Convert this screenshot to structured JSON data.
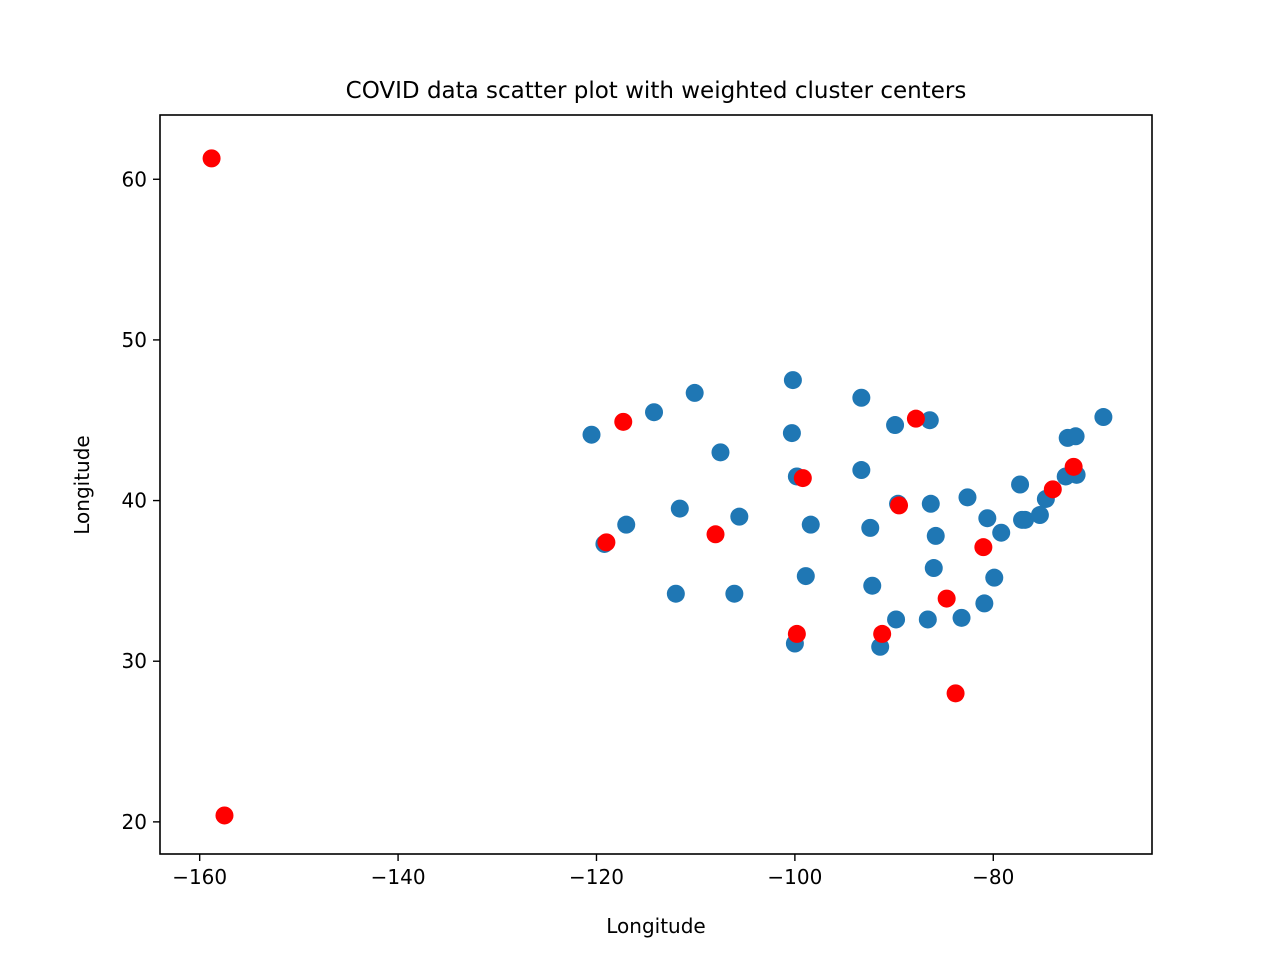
{
  "chart_data": {
    "type": "scatter",
    "title": "COVID data scatter plot with weighted cluster centers",
    "xlabel": "Longitude",
    "ylabel": "Longitude",
    "xlim": [
      -164,
      -64
    ],
    "ylim": [
      18,
      64
    ],
    "xticks": [
      -160,
      -140,
      -120,
      -100,
      -80
    ],
    "yticks": [
      20,
      30,
      40,
      50,
      60
    ],
    "grid": false,
    "series": [
      {
        "color": "#1f77b4",
        "points": [
          [
            -120.5,
            44.1
          ],
          [
            -117.0,
            38.5
          ],
          [
            -119.2,
            37.3
          ],
          [
            -114.2,
            45.5
          ],
          [
            -110.1,
            46.7
          ],
          [
            -111.6,
            39.5
          ],
          [
            -112.0,
            34.2
          ],
          [
            -107.5,
            43.0
          ],
          [
            -105.6,
            39.0
          ],
          [
            -106.1,
            34.2
          ],
          [
            -100.2,
            47.5
          ],
          [
            -100.3,
            44.2
          ],
          [
            -99.8,
            41.5
          ],
          [
            -98.4,
            38.5
          ],
          [
            -98.9,
            35.3
          ],
          [
            -100.0,
            31.1
          ],
          [
            -93.3,
            46.4
          ],
          [
            -93.3,
            41.9
          ],
          [
            -92.4,
            38.3
          ],
          [
            -92.2,
            34.7
          ],
          [
            -91.4,
            30.9
          ],
          [
            -89.9,
            44.7
          ],
          [
            -89.6,
            39.8
          ],
          [
            -89.8,
            32.6
          ],
          [
            -86.4,
            45.0
          ],
          [
            -86.3,
            39.8
          ],
          [
            -85.8,
            37.8
          ],
          [
            -86.0,
            35.8
          ],
          [
            -86.6,
            32.6
          ],
          [
            -82.6,
            40.2
          ],
          [
            -83.2,
            32.7
          ],
          [
            -80.6,
            38.9
          ],
          [
            -79.2,
            38.0
          ],
          [
            -79.9,
            35.2
          ],
          [
            -80.9,
            33.6
          ],
          [
            -77.3,
            41.0
          ],
          [
            -76.8,
            38.8
          ],
          [
            -77.1,
            38.8
          ],
          [
            -75.3,
            39.1
          ],
          [
            -74.7,
            40.1
          ],
          [
            -72.5,
            43.9
          ],
          [
            -71.7,
            44.0
          ],
          [
            -72.7,
            41.5
          ],
          [
            -71.6,
            41.6
          ],
          [
            -68.9,
            45.2
          ]
        ]
      },
      {
        "color": "#ff0000",
        "points": [
          [
            -158.8,
            61.3
          ],
          [
            -157.5,
            20.4
          ],
          [
            -117.3,
            44.9
          ],
          [
            -119.0,
            37.4
          ],
          [
            -108.0,
            37.9
          ],
          [
            -99.2,
            41.4
          ],
          [
            -99.8,
            31.7
          ],
          [
            -87.8,
            45.1
          ],
          [
            -89.5,
            39.7
          ],
          [
            -91.2,
            31.7
          ],
          [
            -84.7,
            33.9
          ],
          [
            -83.8,
            28.0
          ],
          [
            -81.0,
            37.1
          ],
          [
            -74.0,
            40.7
          ],
          [
            -71.9,
            42.1
          ]
        ]
      }
    ]
  }
}
